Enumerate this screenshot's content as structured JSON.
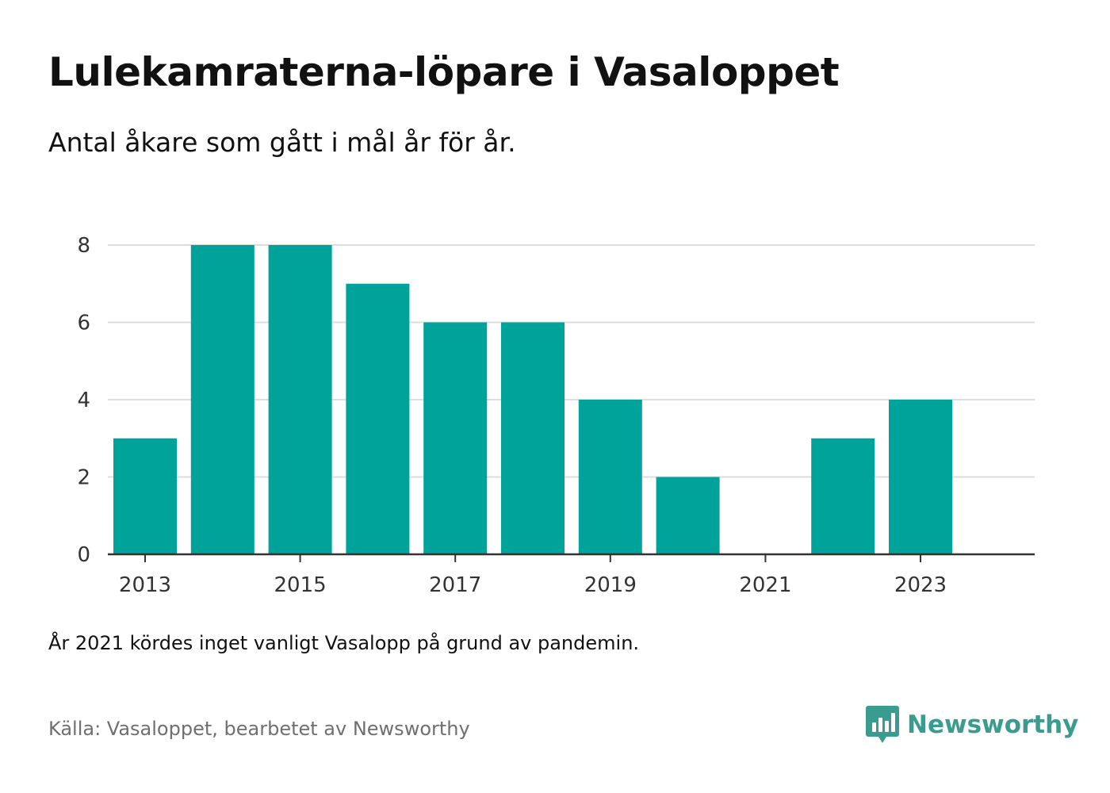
{
  "title": "Lulekamraterna-löpare i Vasaloppet",
  "subtitle": "Antal åkare som gått i mål år för år.",
  "note": "År 2021 kördes inget vanligt Vasalopp på grund av pandemin.",
  "source": "Källa: Vasaloppet, bearbetet av Newsworthy",
  "brand": {
    "name": "Newsworthy",
    "icon": "newsworthy-logo-icon",
    "color": "#3a9b8f"
  },
  "colors": {
    "bar": "#00a39a",
    "grid": "#dddddd",
    "axis": "#333333"
  },
  "chart_data": {
    "type": "bar",
    "title": "",
    "xlabel": "",
    "ylabel": "",
    "x": [
      2013,
      2014,
      2015,
      2016,
      2017,
      2018,
      2019,
      2020,
      2021,
      2022,
      2023
    ],
    "values": [
      3,
      8,
      8,
      7,
      6,
      6,
      4,
      2,
      0,
      3,
      4
    ],
    "x_tick_labels": [
      "2013",
      "2015",
      "2017",
      "2019",
      "2021",
      "2023"
    ],
    "y_ticks": [
      0,
      2,
      4,
      6,
      8
    ],
    "ylim": [
      0,
      8
    ],
    "grid": true,
    "legend": false
  }
}
